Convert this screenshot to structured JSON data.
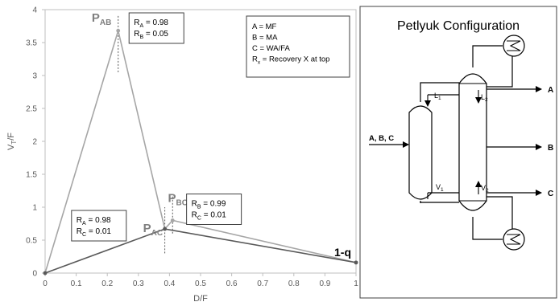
{
  "chart_data": {
    "type": "line",
    "xlabel": "D/F",
    "ylabel_main": "V",
    "ylabel_sub": "T",
    "ylabel_rest": "/F",
    "xlim": [
      0,
      1
    ],
    "ylim": [
      0,
      4
    ],
    "x_ticks": [
      {
        "value": 0,
        "label": "0"
      },
      {
        "value": 0.1,
        "label": "0.1"
      },
      {
        "value": 0.2,
        "label": "0.2"
      },
      {
        "value": 0.3,
        "label": "0.3"
      },
      {
        "value": 0.4,
        "label": "0.4"
      },
      {
        "value": 0.5,
        "label": "0.5"
      },
      {
        "value": 0.6,
        "label": "0.6"
      },
      {
        "value": 0.7,
        "label": "0.7"
      },
      {
        "value": 0.8,
        "label": "0.8"
      },
      {
        "value": 0.9,
        "label": "0.9"
      },
      {
        "value": 1,
        "label": "1"
      }
    ],
    "y_ticks": [
      {
        "value": 0,
        "label": "0"
      },
      {
        "value": 0.5,
        "label": "0.5"
      },
      {
        "value": 1,
        "label": "1"
      },
      {
        "value": 1.5,
        "label": "1.5"
      },
      {
        "value": 2,
        "label": "2"
      },
      {
        "value": 2.5,
        "label": "2.5"
      },
      {
        "value": 3,
        "label": "3"
      },
      {
        "value": 3.5,
        "label": "3.5"
      },
      {
        "value": 4,
        "label": "4"
      }
    ],
    "grid": false,
    "series": [
      {
        "color": "#a6a6a6",
        "x": [
          0,
          0.235,
          0.385,
          0.41,
          1.0
        ],
        "y": [
          0,
          3.68,
          0.67,
          0.8,
          0.16
        ]
      },
      {
        "color": "#595959",
        "x": [
          0,
          0.385,
          1.0
        ],
        "y": [
          0,
          0.67,
          0.16
        ]
      }
    ],
    "points": [
      {
        "main": "P",
        "sub": "AB",
        "x": 0.235,
        "y": 3.68,
        "lx": 0.15,
        "ly": 3.82
      },
      {
        "main": "P",
        "sub": "AC",
        "x": 0.385,
        "y": 0.67,
        "lx": 0.315,
        "ly": 0.62
      },
      {
        "main": "P",
        "sub": "BC",
        "x": 0.41,
        "y": 0.8,
        "lx": 0.395,
        "ly": 1.08
      }
    ],
    "dashed_guides": [
      {
        "x": 0.235,
        "y1": 3.05,
        "y2": 3.92
      },
      {
        "x": 0.385,
        "y1": 0.3,
        "y2": 1.0
      },
      {
        "x": 0.41,
        "y1": 0.6,
        "y2": 1.2
      }
    ],
    "end_label": "1-q",
    "annotations": [
      {
        "lines": [
          {
            "main": "R",
            "sub": "A",
            "rest": " = 0.98"
          },
          {
            "main": "R",
            "sub": "B",
            "rest": " = 0.05"
          }
        ],
        "x": 0.27,
        "y": 4.0
      },
      {
        "lines": [
          {
            "main": "R",
            "sub": "A",
            "rest": " = 0.98"
          },
          {
            "main": "R",
            "sub": "C",
            "rest": " = 0.01"
          }
        ],
        "x": 0.085,
        "y": 1.0
      },
      {
        "lines": [
          {
            "main": "R",
            "sub": "B",
            "rest": " = 0.99"
          },
          {
            "main": "R",
            "sub": "C",
            "rest": " = 0.01"
          }
        ],
        "x": 0.455,
        "y": 1.25
      }
    ],
    "legend": {
      "lines": [
        {
          "main": "A = MF",
          "sub": "",
          "rest": ""
        },
        {
          "main": "B = MA",
          "sub": "",
          "rest": ""
        },
        {
          "main": "C = WA/FA",
          "sub": "",
          "rest": ""
        },
        {
          "main": "R",
          "sub": "x",
          "rest": " = Recovery X at top"
        }
      ],
      "placement": "top-right"
    }
  },
  "diagram": {
    "title": "Petlyuk Configuration",
    "feed_label": "A, B, C",
    "outputs": [
      "A",
      "B",
      "C"
    ],
    "streams": [
      {
        "main": "L",
        "sub": "1"
      },
      {
        "main": "L",
        "sub": "2"
      },
      {
        "main": "V",
        "sub": "1"
      },
      {
        "main": "V",
        "sub": "2"
      }
    ]
  }
}
